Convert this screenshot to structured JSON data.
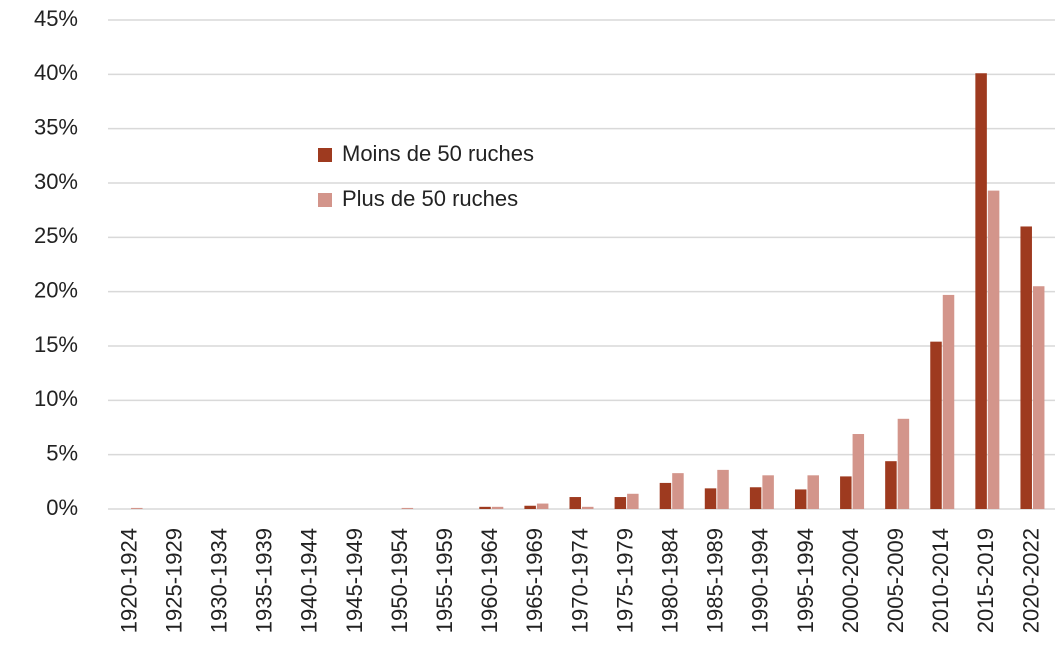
{
  "chart_data": {
    "type": "bar",
    "categories": [
      "1920-1924",
      "1925-1929",
      "1930-1934",
      "1935-1939",
      "1940-1944",
      "1945-1949",
      "1950-1954",
      "1955-1959",
      "1960-1964",
      "1965-1969",
      "1970-1974",
      "1975-1979",
      "1980-1984",
      "1985-1989",
      "1990-1994",
      "1995-1994",
      "2000-2004",
      "2005-2009",
      "2010-2014",
      "2015-2019",
      "2020-2022"
    ],
    "series": [
      {
        "name": "Moins de 50 ruches",
        "color": "#9e3a1f",
        "values": [
          0,
          0,
          0,
          0,
          0,
          0,
          0,
          0,
          0.2,
          0.3,
          1.1,
          1.1,
          2.4,
          1.9,
          2.0,
          1.8,
          3.0,
          4.4,
          15.4,
          40.1,
          26.0
        ]
      },
      {
        "name": "Plus de 50 ruches",
        "color": "#d3958b",
        "values": [
          0.1,
          0,
          0,
          0,
          0,
          0,
          0.1,
          0,
          0.2,
          0.5,
          0.2,
          1.4,
          3.3,
          3.6,
          3.1,
          3.1,
          6.9,
          8.3,
          19.7,
          29.3,
          20.5
        ]
      }
    ],
    "ylim": [
      0,
      45
    ],
    "yticks": [
      {
        "value": 0,
        "label": "0%"
      },
      {
        "value": 5,
        "label": "5%"
      },
      {
        "value": 10,
        "label": "10%"
      },
      {
        "value": 15,
        "label": "15%"
      },
      {
        "value": 20,
        "label": "20%"
      },
      {
        "value": 25,
        "label": "25%"
      },
      {
        "value": 30,
        "label": "30%"
      },
      {
        "value": 35,
        "label": "35%"
      },
      {
        "value": 40,
        "label": "40%"
      },
      {
        "value": 45,
        "label": "45%"
      }
    ],
    "grid": true,
    "legend": "upper left"
  }
}
